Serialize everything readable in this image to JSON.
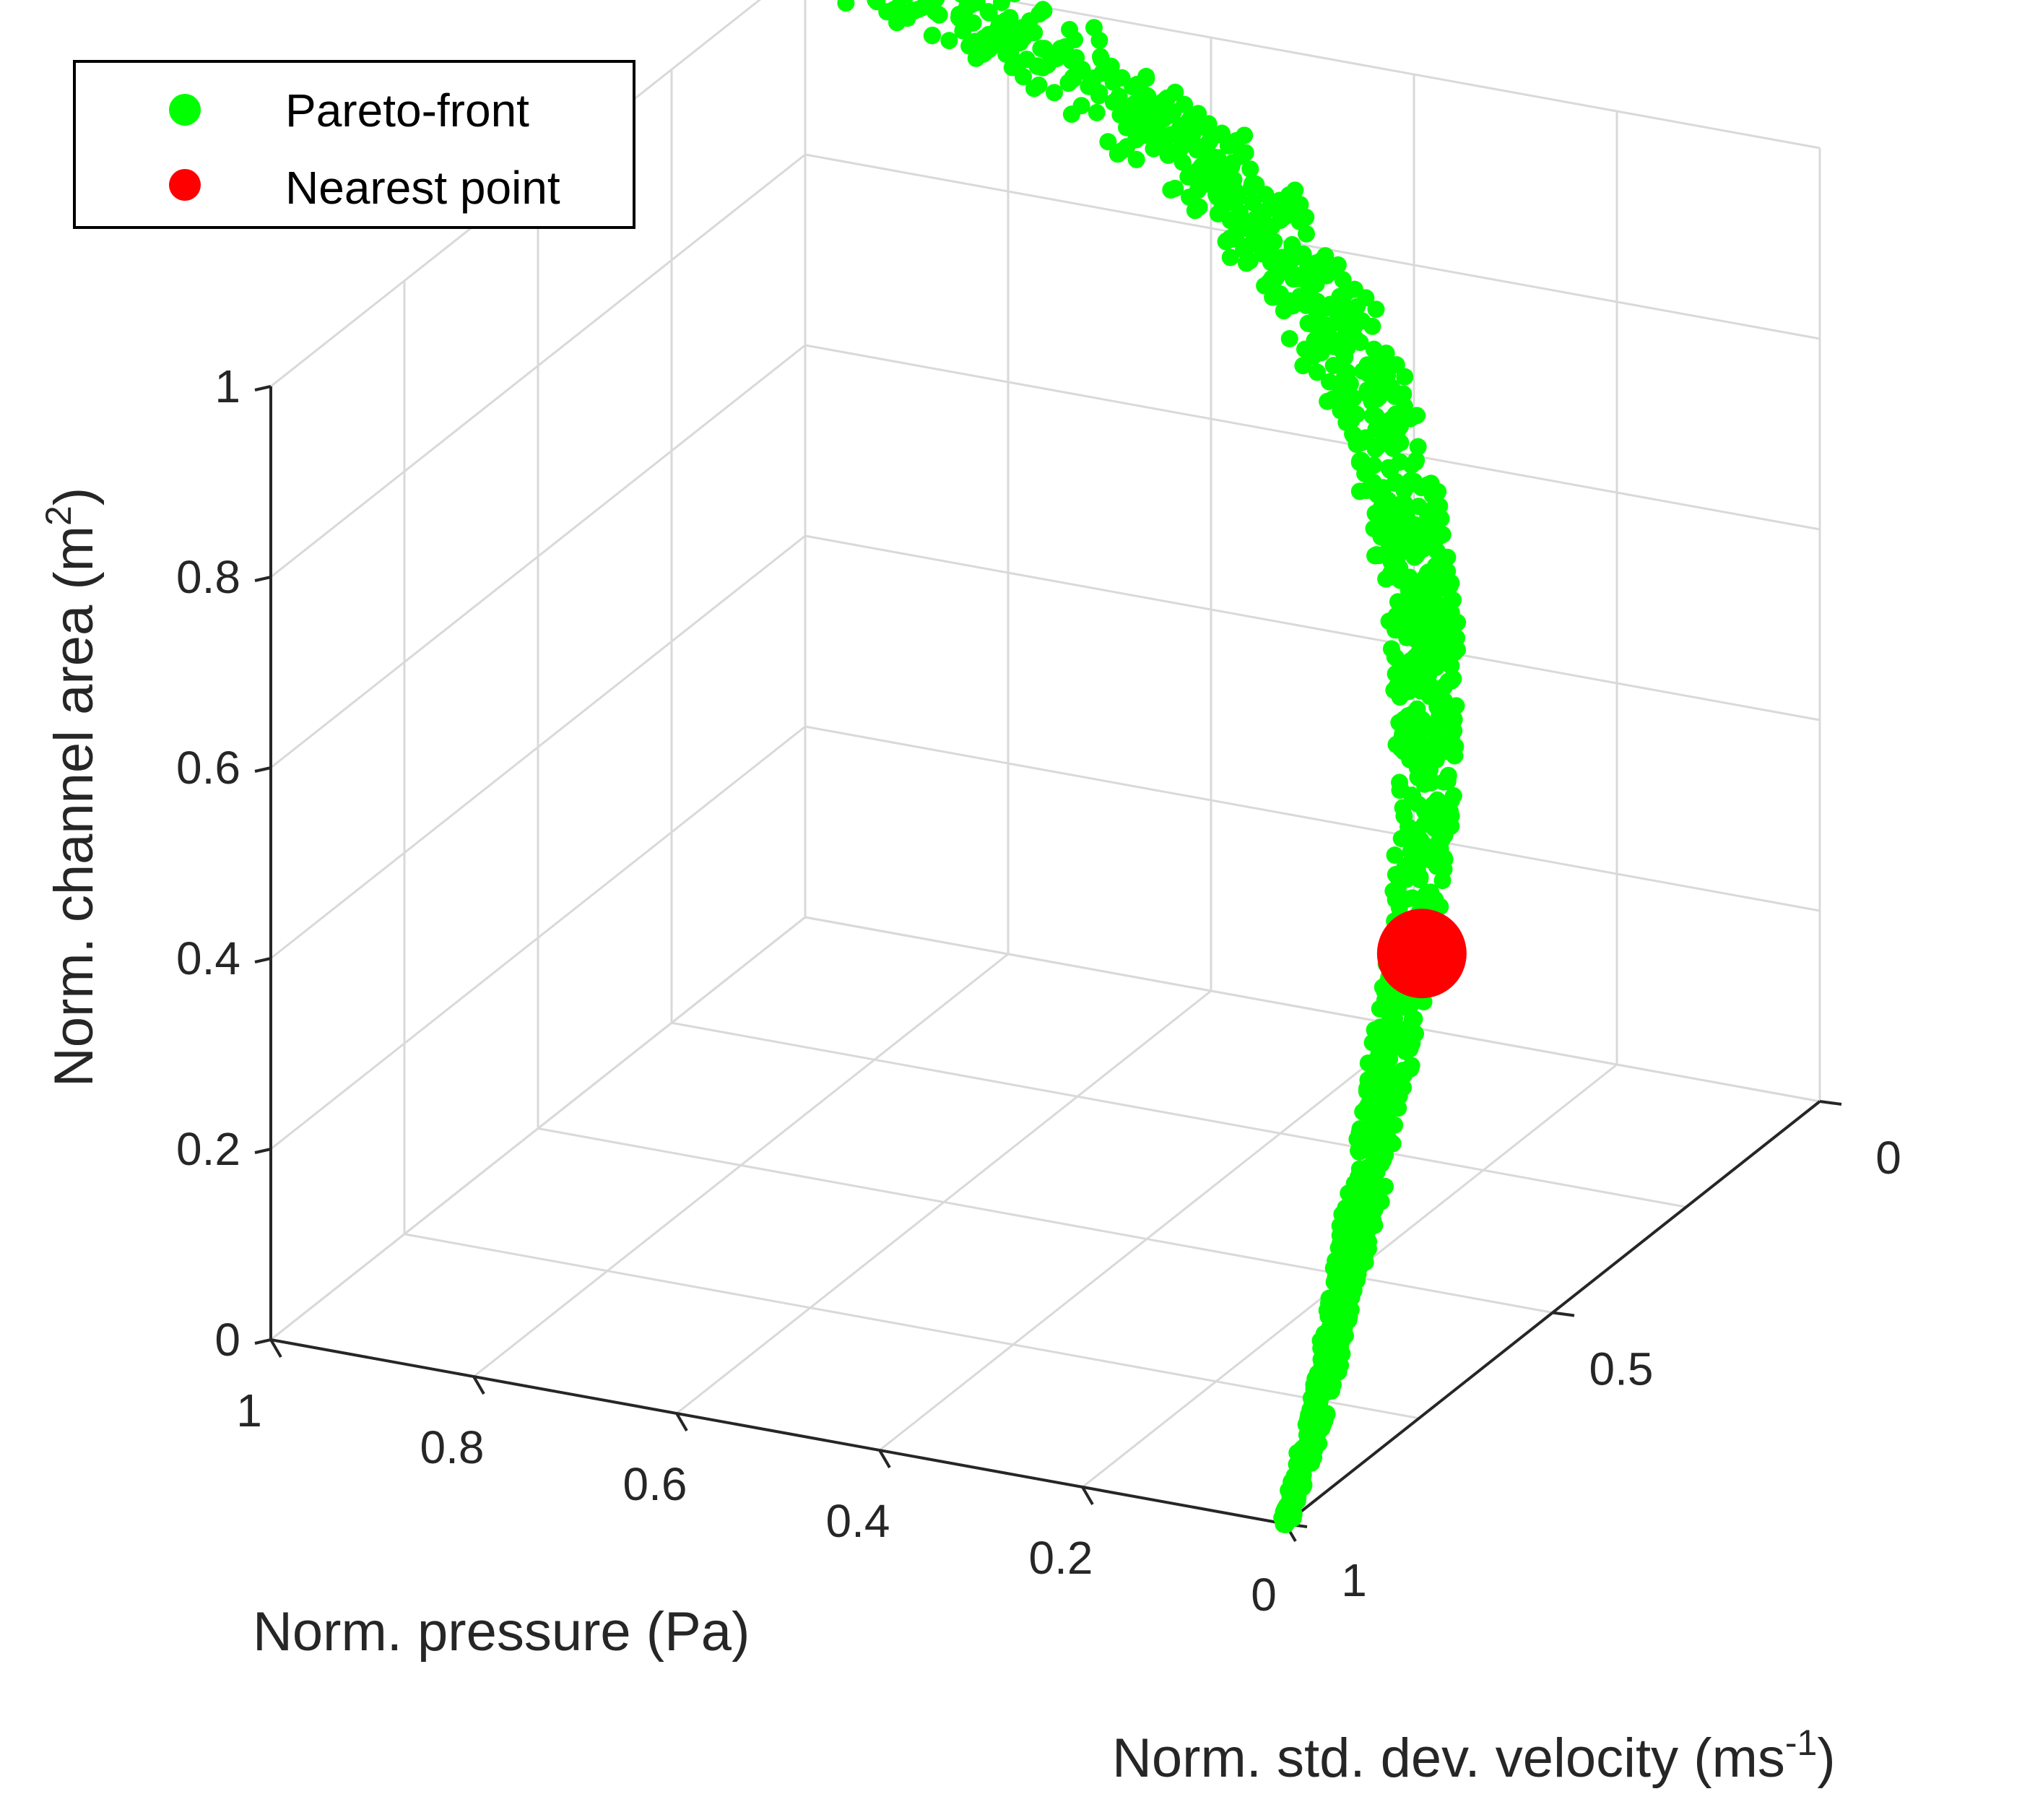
{
  "chart_data": {
    "type": "scatter3d",
    "title": "",
    "xlabel": "Norm. pressure (Pa)",
    "ylabel": "Norm. std. dev. velocity (ms",
    "ylabel_superscript": "-1",
    "ylabel_suffix": ")",
    "zlabel": "Norm. channel area (m",
    "zlabel_superscript": "2",
    "zlabel_suffix": ")",
    "xlim": [
      0,
      1
    ],
    "ylim": [
      0,
      1
    ],
    "zlim": [
      0,
      1
    ],
    "x_ticks": [
      "0",
      "0.2",
      "0.4",
      "0.6",
      "0.8",
      "1"
    ],
    "y_ticks": [
      "0",
      "0.5",
      "1"
    ],
    "z_ticks": [
      "0",
      "0.2",
      "0.4",
      "0.6",
      "0.8",
      "1"
    ],
    "grid": true,
    "legend_position": "top-left",
    "series": [
      {
        "name": "Pareto-front",
        "color": "#00ff00",
        "marker": "circle",
        "points": [
          {
            "x": 0.0,
            "y": 1.0,
            "z": 0.0
          },
          {
            "x": 0.03,
            "y": 0.88,
            "z": 0.06
          },
          {
            "x": 0.07,
            "y": 0.76,
            "z": 0.12
          },
          {
            "x": 0.1,
            "y": 0.66,
            "z": 0.18
          },
          {
            "x": 0.13,
            "y": 0.56,
            "z": 0.25
          },
          {
            "x": 0.16,
            "y": 0.46,
            "z": 0.33
          },
          {
            "x": 0.19,
            "y": 0.38,
            "z": 0.4
          },
          {
            "x": 0.23,
            "y": 0.3,
            "z": 0.48
          },
          {
            "x": 0.27,
            "y": 0.23,
            "z": 0.56
          },
          {
            "x": 0.32,
            "y": 0.17,
            "z": 0.64
          },
          {
            "x": 0.38,
            "y": 0.12,
            "z": 0.72
          },
          {
            "x": 0.46,
            "y": 0.08,
            "z": 0.8
          },
          {
            "x": 0.55,
            "y": 0.05,
            "z": 0.87
          },
          {
            "x": 0.66,
            "y": 0.03,
            "z": 0.93
          },
          {
            "x": 0.78,
            "y": 0.01,
            "z": 0.97
          },
          {
            "x": 0.92,
            "y": 0.0,
            "z": 1.0
          }
        ]
      },
      {
        "name": "Nearest point",
        "color": "#ff0000",
        "marker": "circle",
        "points": [
          {
            "x": 0.15,
            "y": 0.46,
            "z": 0.33
          }
        ]
      }
    ]
  }
}
